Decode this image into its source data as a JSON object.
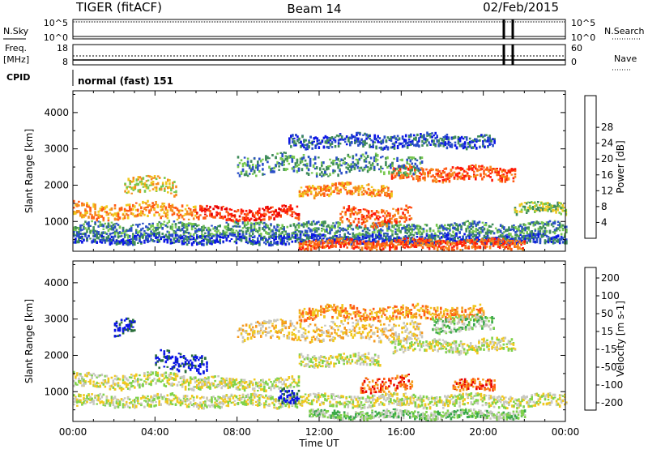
{
  "header": {
    "title": "TIGER (fitACF)",
    "beam": "Beam 14",
    "date": "02/Feb/2015"
  },
  "top_panels": {
    "nsky": {
      "label": "N.Sky",
      "ticks": [
        "10^5",
        "10^0"
      ]
    },
    "nsearch": {
      "label": "N.Search",
      "ticks": [
        "10^5",
        "10^0"
      ]
    },
    "freq": {
      "label_line1": "Freq.",
      "label_line2": "[MHz]",
      "ticks": [
        "18",
        "8"
      ]
    },
    "nave": {
      "label": "Nave",
      "ticks": [
        "60",
        "0"
      ]
    },
    "cpid": {
      "label": "CPID",
      "value": "normal (fast) 151"
    }
  },
  "chart_data": [
    {
      "type": "heatmap",
      "title": "",
      "ylabel": "Slant Range [km]",
      "xlabel": "",
      "ylim": [
        180,
        4600
      ],
      "yticks": [
        1000,
        2000,
        3000,
        4000
      ],
      "colorbar": {
        "label": "Power [dB]",
        "ticks": [
          "4",
          "8",
          "12",
          "16",
          "20",
          "24",
          "28"
        ],
        "colors": [
          "#0a14e6",
          "#2a4fc8",
          "#3f8c5a",
          "#78c850",
          "#f0c81e",
          "#f58c1e",
          "#ff5a14",
          "#ff1a0a",
          "#e60000"
        ]
      },
      "bands": [
        {
          "t0": 0.0,
          "t1": 24.0,
          "r": 820,
          "w": 220,
          "level": 2
        },
        {
          "t0": 0.0,
          "t1": 24.0,
          "r": 540,
          "w": 150,
          "level": 1
        },
        {
          "t0": 0.0,
          "t1": 6.0,
          "r": 1330,
          "w": 260,
          "level": 5
        },
        {
          "t0": 6.0,
          "t1": 11.0,
          "r": 1250,
          "w": 220,
          "level": 7
        },
        {
          "t0": 11.0,
          "t1": 15.5,
          "r": 1900,
          "w": 200,
          "level": 5
        },
        {
          "t0": 13.0,
          "t1": 16.5,
          "r": 1180,
          "w": 300,
          "level": 6
        },
        {
          "t0": 15.5,
          "t1": 21.5,
          "r": 2350,
          "w": 240,
          "level": 6
        },
        {
          "t0": 21.5,
          "t1": 24.0,
          "r": 1400,
          "w": 200,
          "level": 3
        },
        {
          "t0": 2.5,
          "t1": 5.0,
          "r": 2000,
          "w": 280,
          "level": 4
        },
        {
          "t0": 8.0,
          "t1": 17.0,
          "r": 2600,
          "w": 320,
          "level": 2
        },
        {
          "t0": 10.5,
          "t1": 20.5,
          "r": 3250,
          "w": 220,
          "level": 1
        },
        {
          "t0": 11.0,
          "t1": 22.0,
          "r": 400,
          "w": 160,
          "level": 6
        }
      ]
    },
    {
      "type": "heatmap",
      "title": "",
      "ylabel": "Slant Range [km]",
      "xlabel": "Time UT",
      "xlim": [
        0,
        24
      ],
      "xticks": [
        "00:00",
        "04:00",
        "08:00",
        "12:00",
        "16:00",
        "20:00",
        "00:00"
      ],
      "ylim": [
        180,
        4600
      ],
      "yticks": [
        1000,
        2000,
        3000,
        4000
      ],
      "colorbar": {
        "label": "Velocity [m s-1]",
        "ticks": [
          "200",
          "100",
          "50",
          "15",
          "-15",
          "-50",
          "-100",
          "-200"
        ],
        "colors": [
          "#0a14e6",
          "#2a6e3a",
          "#3aa84a",
          "#7fd24a",
          "#c8c8c0",
          "#f0c81e",
          "#f59a1e",
          "#ff5a14",
          "#e60000"
        ]
      },
      "bands": [
        {
          "t0": 0.0,
          "t1": 24.0,
          "r": 780,
          "w": 200,
          "level": 4
        },
        {
          "t0": 0.0,
          "t1": 6.0,
          "r": 1330,
          "w": 240,
          "level": 4
        },
        {
          "t0": 6.0,
          "t1": 11.0,
          "r": 1250,
          "w": 200,
          "level": 4
        },
        {
          "t0": 11.0,
          "t1": 15.0,
          "r": 1900,
          "w": 200,
          "level": 4
        },
        {
          "t0": 15.5,
          "t1": 21.5,
          "r": 2300,
          "w": 220,
          "level": 4
        },
        {
          "t0": 14.0,
          "t1": 16.5,
          "r": 1250,
          "w": 260,
          "level": 7
        },
        {
          "t0": 18.5,
          "t1": 20.5,
          "r": 1200,
          "w": 180,
          "level": 7
        },
        {
          "t0": 4.0,
          "t1": 6.5,
          "r": 1850,
          "w": 320,
          "level": 0
        },
        {
          "t0": 2.0,
          "t1": 3.0,
          "r": 2850,
          "w": 300,
          "level": 0
        },
        {
          "t0": 10.0,
          "t1": 11.0,
          "r": 850,
          "w": 260,
          "level": 0
        },
        {
          "t0": 8.0,
          "t1": 17.0,
          "r": 2700,
          "w": 320,
          "level": 5
        },
        {
          "t0": 11.0,
          "t1": 20.0,
          "r": 3200,
          "w": 240,
          "level": 6
        },
        {
          "t0": 17.5,
          "t1": 20.5,
          "r": 2900,
          "w": 260,
          "level": 3
        },
        {
          "t0": 11.5,
          "t1": 22.0,
          "r": 400,
          "w": 140,
          "level": 3
        }
      ]
    }
  ]
}
